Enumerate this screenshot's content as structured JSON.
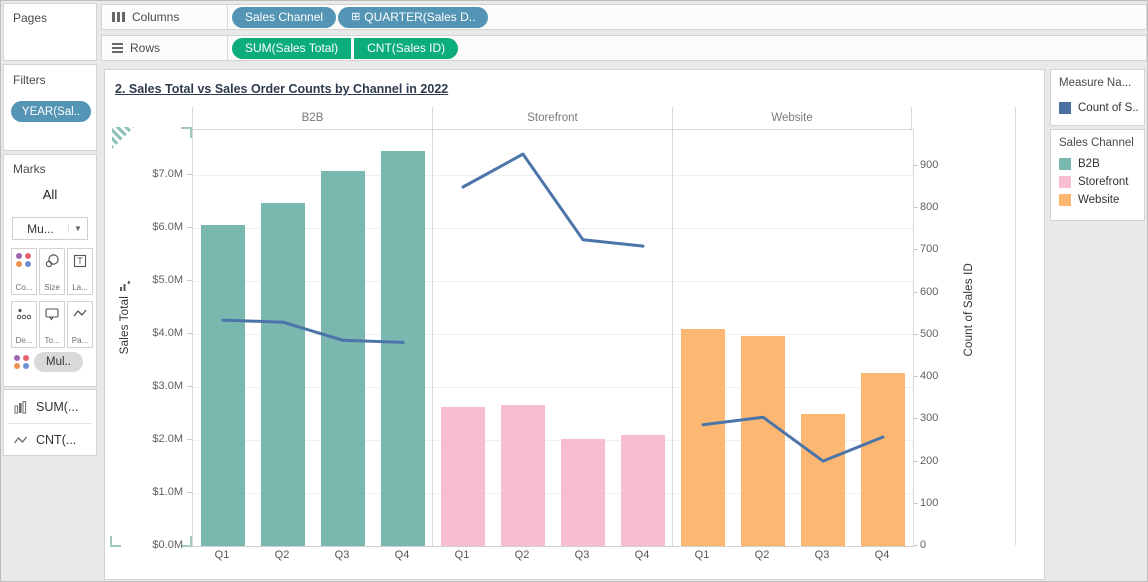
{
  "colors": {
    "pill_blue": "#5495B5",
    "pill_green": "#0CAD7C",
    "line_blue": "#4B74A9",
    "legend_count_blue": "#4A6FA0"
  },
  "shelves": {
    "columns": {
      "label": "Columns",
      "pills": [
        {
          "label": "Sales Channel"
        },
        {
          "label": "QUARTER(Sales D..",
          "icon_glyph": "⊞"
        }
      ]
    },
    "rows": {
      "label": "Rows",
      "pills": [
        {
          "label": "SUM(Sales Total)"
        },
        {
          "label": "CNT(Sales ID)"
        }
      ]
    }
  },
  "sidebar": {
    "pages": {
      "title": "Pages"
    },
    "filters": {
      "title": "Filters",
      "pill": "YEAR(Sal.."
    },
    "marks": {
      "title": "Marks",
      "scope": "All",
      "mark_type": "Mu...",
      "buttons": [
        {
          "icon": "color-icon",
          "label": "Co..."
        },
        {
          "icon": "size-icon",
          "label": "Size"
        },
        {
          "icon": "label-icon",
          "label": "La..."
        },
        {
          "icon": "detail-icon",
          "label": "De..."
        },
        {
          "icon": "tooltip-icon",
          "label": "To..."
        },
        {
          "icon": "path-icon",
          "label": "Pa..."
        }
      ],
      "multi_pill": "Mul.."
    },
    "measures": [
      {
        "icon": "bar-chart-icon",
        "label": "SUM(..."
      },
      {
        "icon": "line-chart-icon",
        "label": "CNT(..."
      }
    ]
  },
  "legends": {
    "measure_names": {
      "title": "Measure Na...",
      "items": [
        {
          "label": "Count of S..",
          "color": "#4A6FA0"
        }
      ]
    },
    "sales_channel": {
      "title": "Sales Channel",
      "items": [
        {
          "label": "B2B",
          "color": "#79B7AF"
        },
        {
          "label": "Storefront",
          "color": "#F9BDD0"
        },
        {
          "label": "Website",
          "color": "#FCB873"
        }
      ]
    }
  },
  "chart_data": {
    "type": "combo",
    "title": "2. Sales Total vs Sales Order Counts by Channel in 2022",
    "categories": [
      "Q1",
      "Q2",
      "Q3",
      "Q4"
    ],
    "panels": [
      {
        "name": "B2B",
        "bar_color": "#79B7AF",
        "bars": [
          6050000,
          6480000,
          7070000,
          7460000
        ],
        "line": [
          535,
          530,
          487,
          482
        ]
      },
      {
        "name": "Storefront",
        "bar_color": "#F9BDD0",
        "bars": [
          2620000,
          2670000,
          2010000,
          2090000
        ],
        "line": [
          850,
          928,
          725,
          710
        ]
      },
      {
        "name": "Website",
        "bar_color": "#FCB873",
        "bars": [
          4090000,
          3970000,
          2490000,
          3260000
        ],
        "line": [
          287,
          305,
          201,
          258
        ]
      }
    ],
    "bar_series_name": "SUM(Sales Total)",
    "line_series_name": "CNT(Sales ID)",
    "line_color": "#4B74A9",
    "left_axis": {
      "label": "Sales Total",
      "tick_labels": [
        "$0.0M",
        "$1.0M",
        "$2.0M",
        "$3.0M",
        "$4.0M",
        "$5.0M",
        "$6.0M",
        "$7.0M"
      ],
      "tick_values": [
        0,
        1000000,
        2000000,
        3000000,
        4000000,
        5000000,
        6000000,
        7000000
      ],
      "min": 0,
      "max": 7850000
    },
    "right_axis": {
      "label": "Count of Sales ID",
      "tick_labels": [
        "0",
        "100",
        "200",
        "300",
        "400",
        "500",
        "600",
        "700",
        "800",
        "900"
      ],
      "tick_values": [
        0,
        100,
        200,
        300,
        400,
        500,
        600,
        700,
        800,
        900
      ],
      "min": 0,
      "max": 985
    },
    "grid": "horizontal gridlines at $1M steps",
    "legend_position": "right"
  }
}
